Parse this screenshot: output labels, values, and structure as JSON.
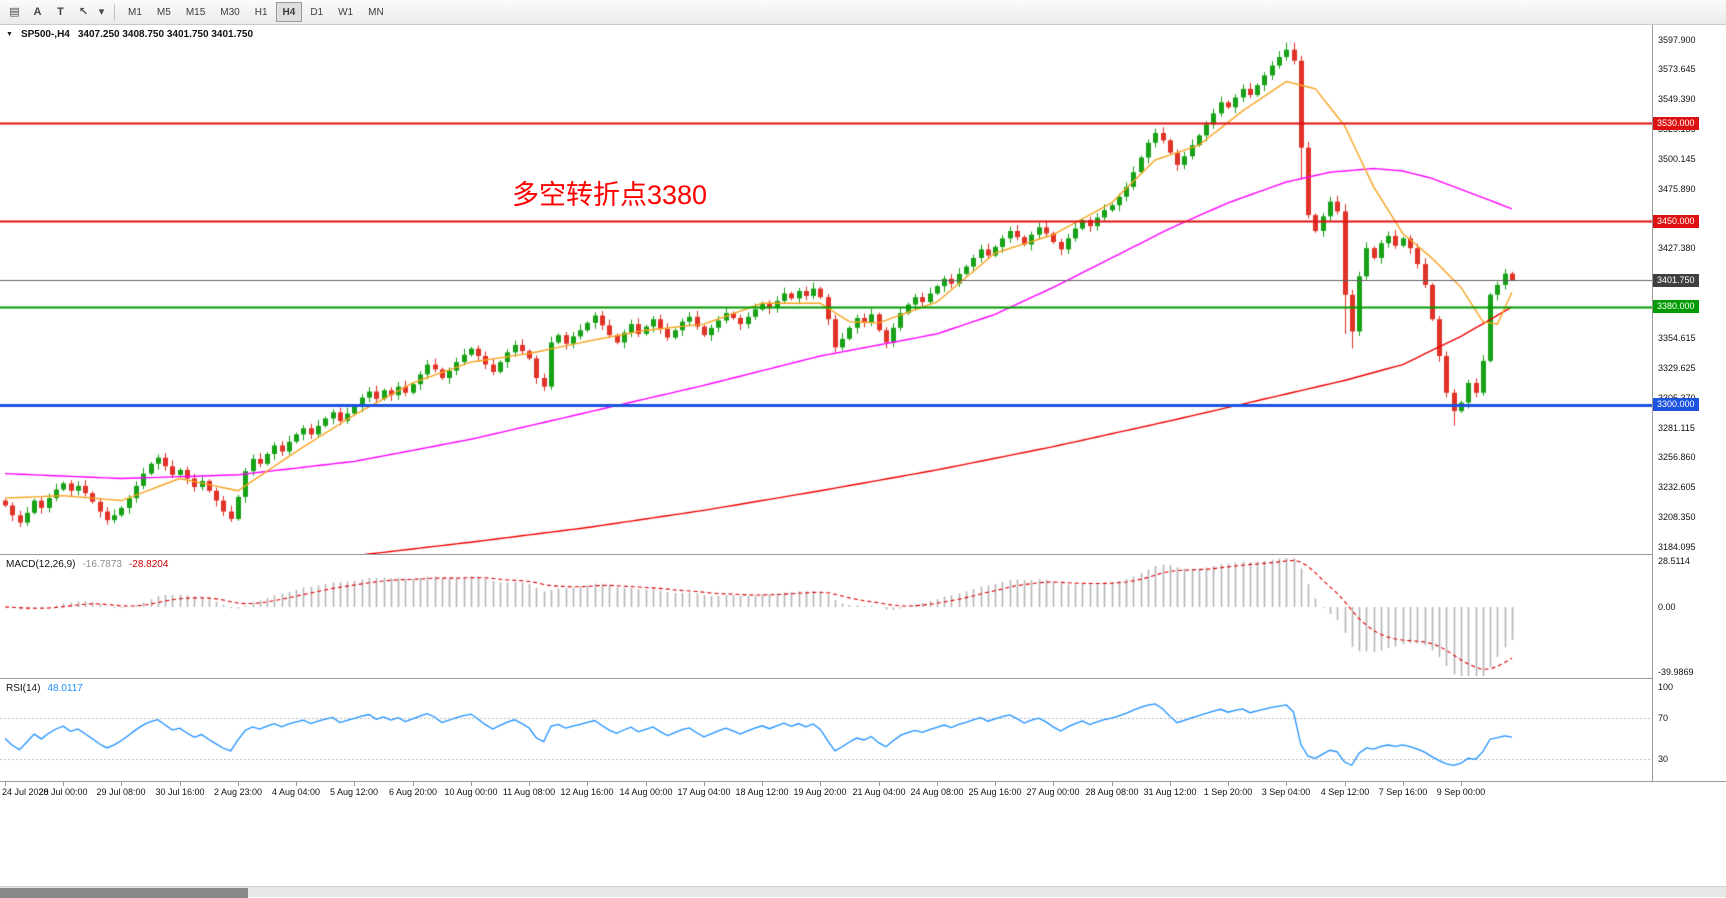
{
  "toolbar": {
    "tools": [
      {
        "name": "charts-list",
        "glyph": "▤"
      },
      {
        "name": "text-label-tool",
        "glyph": "A"
      },
      {
        "name": "text-tool",
        "glyph": "T"
      },
      {
        "name": "cursor-tool",
        "glyph": "↖"
      },
      {
        "name": "tools-dropdown",
        "glyph": "▾",
        "narrow": true
      }
    ],
    "timeframes": [
      "M1",
      "M5",
      "M15",
      "M30",
      "H1",
      "H4",
      "D1",
      "W1",
      "MN"
    ],
    "active_timeframe": "H4"
  },
  "chart": {
    "symbol_label": "SP500-,H4",
    "ohlc_label": "3407.250 3408.750 3401.750 3401.750",
    "annotation": "多空转折点3380",
    "annotation_color": "#ff0000"
  },
  "price_axis": {
    "ticks": [
      "3597.900",
      "3573.645",
      "3549.390",
      "3525.135",
      "3500.145",
      "3475.890",
      "3427.380",
      "3354.615",
      "3329.625",
      "3305.370",
      "3281.115",
      "3256.860",
      "3232.605",
      "3208.350",
      "3184.095"
    ],
    "labels": [
      {
        "text": "3530.000",
        "value": 3530.0,
        "bg": "#dd1111"
      },
      {
        "text": "3450.000",
        "value": 3450.0,
        "bg": "#dd1111"
      },
      {
        "text": "3401.750",
        "value": 3401.75,
        "bg": "#3f3f3f"
      },
      {
        "text": "3380.000",
        "value": 3380.0,
        "bg": "#009b00"
      },
      {
        "text": "3300.000",
        "value": 3300.0,
        "bg": "#1c52e0"
      }
    ]
  },
  "time_axis": {
    "bars_per_tick": 8,
    "ticks": [
      "24 Jul 2020",
      "28 Jul 00:00",
      "29 Jul 08:00",
      "30 Jul 16:00",
      "2 Aug 23:00",
      "4 Aug 04:00",
      "5 Aug 12:00",
      "6 Aug 20:00",
      "10 Aug 00:00",
      "11 Aug 08:00",
      "12 Aug 16:00",
      "14 Aug 00:00",
      "17 Aug 04:00",
      "18 Aug 12:00",
      "19 Aug 20:00",
      "21 Aug 04:00",
      "24 Aug 08:00",
      "25 Aug 16:00",
      "27 Aug 00:00",
      "28 Aug 08:00",
      "31 Aug 12:00",
      "1 Sep 20:00",
      "3 Sep 04:00",
      "4 Sep 12:00",
      "7 Sep 16:00",
      "9 Sep 00:00"
    ]
  },
  "macd_panel": {
    "label": "MACD(12,26,9)",
    "value_main": "-16.7873",
    "value_signal": "-28.8204",
    "axis": [
      "28.5114",
      "0.00",
      "-39.9869"
    ],
    "max": 28.5114,
    "min": -39.9869,
    "histogram_color": "#b4b4b4",
    "signal_color": "#dd0000"
  },
  "rsi_panel": {
    "label": "RSI(14)",
    "value": "48.0117",
    "axis": [
      "100",
      "70",
      "30"
    ],
    "levels": [
      70,
      30
    ],
    "range": [
      0,
      100
    ],
    "color": "#1e90ff"
  },
  "chart_data": {
    "type": "candlestick",
    "symbol": "SP500-",
    "timeframe": "H4",
    "last_ohlc": {
      "open": 3407.25,
      "high": 3408.75,
      "low": 3401.75,
      "close": 3401.75
    },
    "y_axis": {
      "min": 3184.095,
      "max": 3597.9
    },
    "current_price": 3401.75,
    "current_price_color": "#606060",
    "first_open": 3222,
    "closes": [
      3218,
      3210,
      3204,
      3212,
      3222,
      3216,
      3224,
      3231,
      3236,
      3230,
      3234,
      3228,
      3221,
      3213,
      3206,
      3210,
      3216,
      3224,
      3234,
      3244,
      3252,
      3257,
      3250,
      3243,
      3247,
      3240,
      3233,
      3238,
      3230,
      3222,
      3213,
      3207,
      3225,
      3246,
      3256,
      3252,
      3260,
      3267,
      3262,
      3270,
      3276,
      3281,
      3276,
      3283,
      3289,
      3294,
      3287,
      3293,
      3299,
      3306,
      3311,
      3305,
      3312,
      3308,
      3315,
      3310,
      3317,
      3325,
      3333,
      3329,
      3322,
      3328,
      3335,
      3341,
      3346,
      3340,
      3333,
      3327,
      3335,
      3343,
      3349,
      3344,
      3338,
      3322,
      3315,
      3351,
      3357,
      3350,
      3356,
      3361,
      3367,
      3373,
      3365,
      3357,
      3351,
      3359,
      3366,
      3358,
      3364,
      3370,
      3362,
      3355,
      3361,
      3368,
      3372,
      3364,
      3357,
      3363,
      3369,
      3375,
      3371,
      3366,
      3372,
      3378,
      3383,
      3379,
      3385,
      3391,
      3387,
      3393,
      3389,
      3395,
      3388,
      3370,
      3347,
      3354,
      3363,
      3371,
      3367,
      3374,
      3361,
      3351,
      3363,
      3375,
      3382,
      3388,
      3384,
      3391,
      3397,
      3403,
      3399,
      3407,
      3413,
      3420,
      3427,
      3422,
      3429,
      3436,
      3442,
      3437,
      3431,
      3439,
      3445,
      3440,
      3433,
      3427,
      3436,
      3444,
      3451,
      3446,
      3453,
      3459,
      3463,
      3470,
      3478,
      3490,
      3502,
      3514,
      3522,
      3516,
      3506,
      3496,
      3503,
      3512,
      3520,
      3529,
      3538,
      3547,
      3543,
      3551,
      3558,
      3553,
      3561,
      3569,
      3577,
      3584,
      3590,
      3581,
      3510,
      3455,
      3442,
      3454,
      3466,
      3458,
      3390,
      3360,
      3405,
      3428,
      3420,
      3432,
      3438,
      3430,
      3436,
      3428,
      3415,
      3398,
      3370,
      3340,
      3310,
      3295,
      3302,
      3318,
      3310,
      3336,
      3390,
      3398,
      3407.25,
      3401.75
    ],
    "wick_overrides": {
      "176": [
        6,
        3
      ],
      "177": [
        6,
        3
      ],
      "178": [
        4,
        26
      ],
      "184": [
        6,
        32
      ],
      "185": [
        4,
        14
      ],
      "199": [
        3,
        12
      ],
      "207": [
        1.5,
        0
      ]
    },
    "colors": {
      "up": "#17a117",
      "down": "#e13228"
    },
    "horizontal_lines": [
      {
        "price": 3530.0,
        "color": "#dd1111",
        "width": 2
      },
      {
        "price": 3450.0,
        "color": "#dd1111",
        "width": 2
      },
      {
        "price": 3380.0,
        "color": "#009b00",
        "width": 2
      },
      {
        "price": 3300.0,
        "color": "#1c52e0",
        "width": 3
      }
    ],
    "moving_averages": [
      {
        "name": "ma-slow",
        "color": "#f00000",
        "points": [
          [
            0,
            3150
          ],
          [
            16,
            3159
          ],
          [
            32,
            3167
          ],
          [
            48,
            3177
          ],
          [
            64,
            3188
          ],
          [
            80,
            3200
          ],
          [
            96,
            3214
          ],
          [
            112,
            3230
          ],
          [
            128,
            3247
          ],
          [
            144,
            3266
          ],
          [
            160,
            3287
          ],
          [
            176,
            3309
          ],
          [
            184,
            3320
          ],
          [
            192,
            3333
          ],
          [
            200,
            3356
          ],
          [
            207,
            3380
          ]
        ]
      },
      {
        "name": "ma-mid",
        "color": "#ff00ff",
        "points": [
          [
            0,
            3244
          ],
          [
            16,
            3240
          ],
          [
            32,
            3243
          ],
          [
            48,
            3254
          ],
          [
            64,
            3272
          ],
          [
            80,
            3294
          ],
          [
            96,
            3316
          ],
          [
            112,
            3340
          ],
          [
            128,
            3358
          ],
          [
            136,
            3374
          ],
          [
            144,
            3396
          ],
          [
            152,
            3420
          ],
          [
            160,
            3444
          ],
          [
            168,
            3465
          ],
          [
            176,
            3482
          ],
          [
            182,
            3490
          ],
          [
            188,
            3493
          ],
          [
            192,
            3491
          ],
          [
            196,
            3485
          ],
          [
            200,
            3476
          ],
          [
            204,
            3467
          ],
          [
            207,
            3460
          ]
        ]
      },
      {
        "name": "ma-fast",
        "color": "#f7a420",
        "points": [
          [
            0,
            3224
          ],
          [
            8,
            3226
          ],
          [
            16,
            3222
          ],
          [
            24,
            3240
          ],
          [
            32,
            3230
          ],
          [
            40,
            3262
          ],
          [
            48,
            3292
          ],
          [
            56,
            3318
          ],
          [
            64,
            3335
          ],
          [
            72,
            3342
          ],
          [
            80,
            3352
          ],
          [
            88,
            3361
          ],
          [
            96,
            3366
          ],
          [
            104,
            3383
          ],
          [
            112,
            3383
          ],
          [
            116,
            3368
          ],
          [
            120,
            3367
          ],
          [
            128,
            3384
          ],
          [
            136,
            3424
          ],
          [
            144,
            3439
          ],
          [
            152,
            3465
          ],
          [
            158,
            3500
          ],
          [
            164,
            3512
          ],
          [
            170,
            3540
          ],
          [
            176,
            3564
          ],
          [
            180,
            3558
          ],
          [
            184,
            3528
          ],
          [
            188,
            3478
          ],
          [
            192,
            3440
          ],
          [
            196,
            3420
          ],
          [
            200,
            3396
          ],
          [
            203,
            3368
          ],
          [
            205,
            3366
          ],
          [
            207,
            3392
          ]
        ]
      }
    ]
  }
}
